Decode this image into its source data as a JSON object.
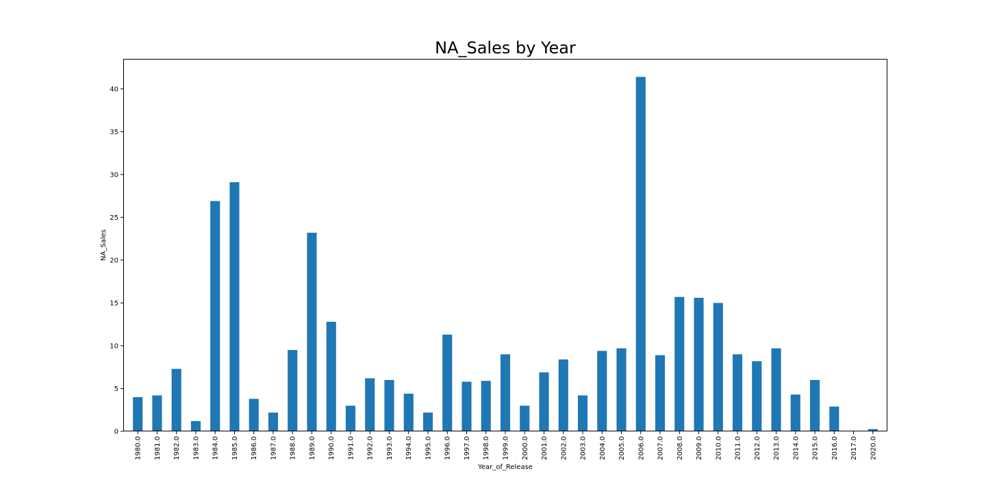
{
  "chart_data": {
    "type": "bar",
    "title": "NA_Sales by Year",
    "xlabel": "Year_of_Release",
    "ylabel": "NA_Sales",
    "categories": [
      "1980.0",
      "1981.0",
      "1982.0",
      "1983.0",
      "1984.0",
      "1985.0",
      "1986.0",
      "1987.0",
      "1988.0",
      "1989.0",
      "1990.0",
      "1991.0",
      "1992.0",
      "1993.0",
      "1994.0",
      "1995.0",
      "1996.0",
      "1997.0",
      "1998.0",
      "1999.0",
      "2000.0",
      "2001.0",
      "2002.0",
      "2003.0",
      "2004.0",
      "2005.0",
      "2006.0",
      "2007.0",
      "2008.0",
      "2009.0",
      "2010.0",
      "2011.0",
      "2012.0",
      "2013.0",
      "2014.0",
      "2015.0",
      "2016.0",
      "2017.0",
      "2020.0"
    ],
    "values": [
      4.0,
      4.2,
      7.3,
      1.2,
      26.9,
      29.1,
      3.8,
      2.2,
      9.5,
      23.2,
      12.8,
      3.0,
      6.2,
      6.0,
      4.4,
      2.2,
      11.3,
      5.8,
      5.9,
      9.0,
      3.0,
      6.9,
      8.4,
      4.2,
      9.4,
      9.7,
      41.4,
      8.9,
      15.7,
      15.6,
      15.0,
      9.0,
      8.2,
      9.7,
      4.3,
      6.0,
      2.9,
      0.0,
      0.27
    ],
    "yticks": [
      "0",
      "5",
      "10",
      "15",
      "20",
      "25",
      "30",
      "35",
      "40"
    ],
    "ylim": [
      0,
      43.5
    ],
    "bar_color": "#1f77b4",
    "grid": false,
    "legend": false
  }
}
